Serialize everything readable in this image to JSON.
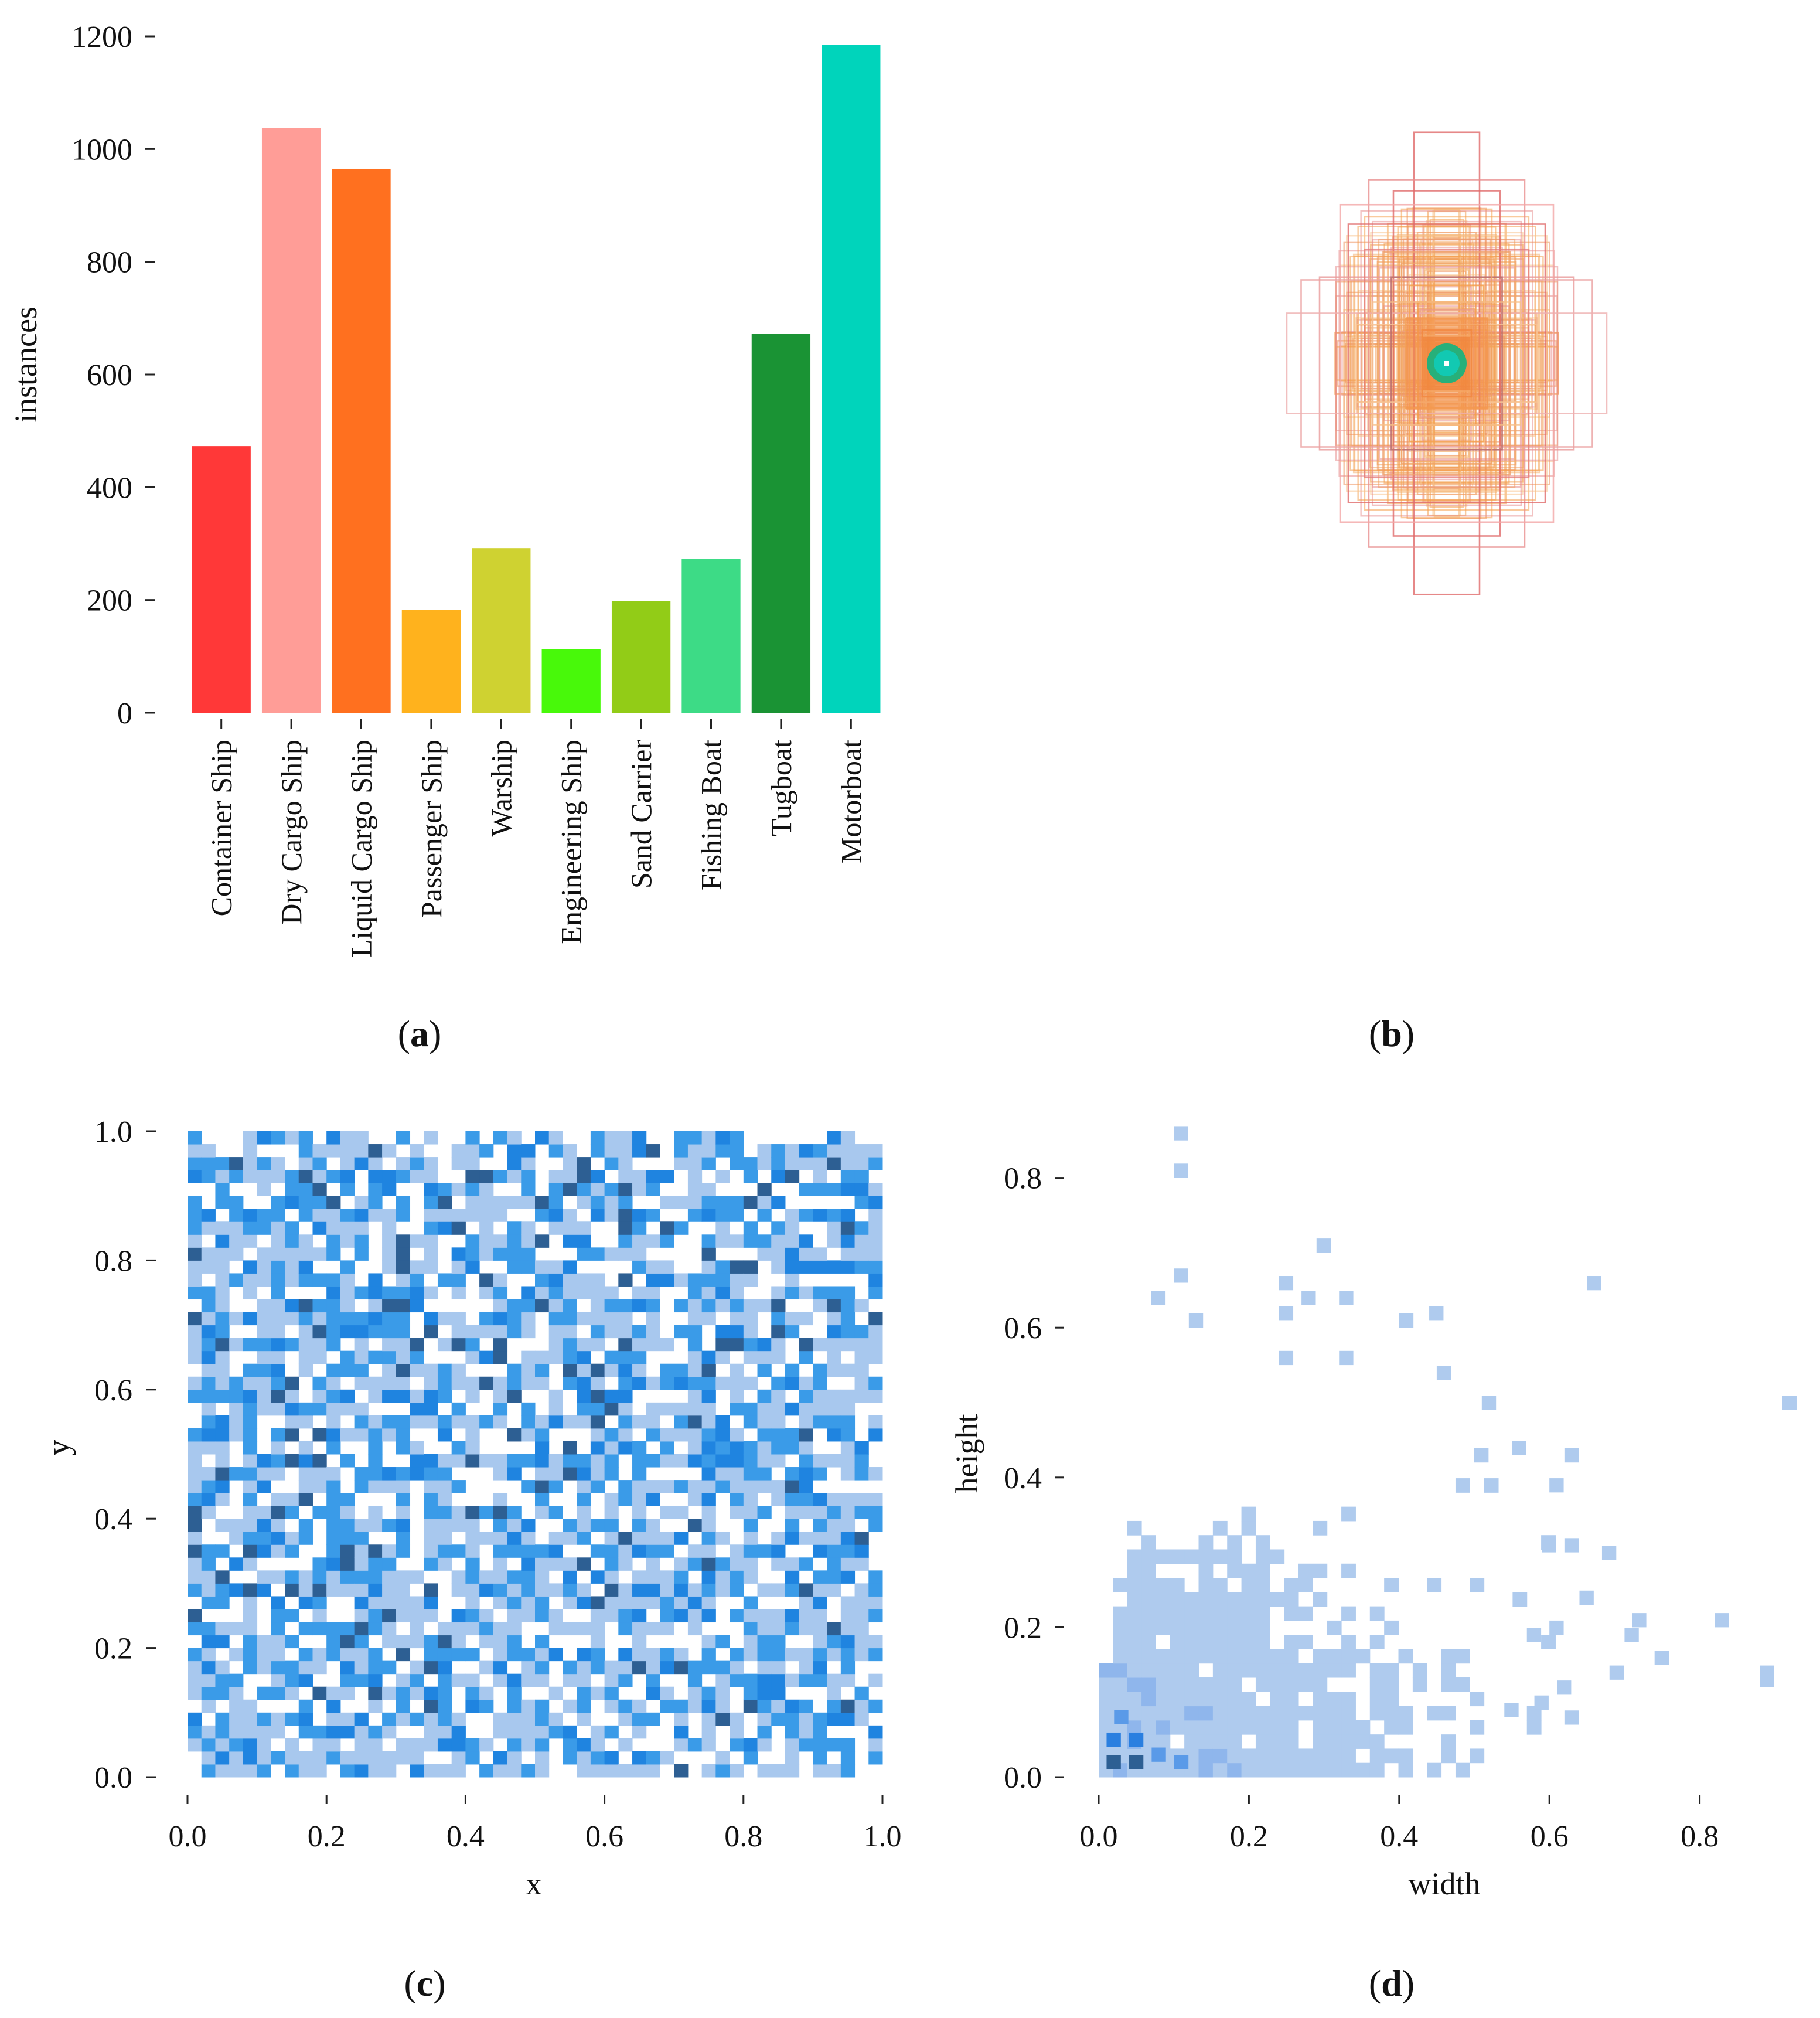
{
  "panels": {
    "a": {
      "label_open": "(",
      "label_letter": "a",
      "label_close": ")"
    },
    "b": {
      "label_open": "(",
      "label_letter": "b",
      "label_close": ")"
    },
    "c": {
      "label_open": "(",
      "label_letter": "c",
      "label_close": ")"
    },
    "d": {
      "label_open": "(",
      "label_letter": "d",
      "label_close": ")"
    }
  },
  "chart_data": [
    {
      "id": "a",
      "type": "bar",
      "title": "",
      "xlabel": "",
      "ylabel": "instances",
      "ylim": [
        0,
        1200
      ],
      "yticks": [
        0,
        200,
        400,
        600,
        800,
        1000,
        1200
      ],
      "ytick_labels": [
        "0",
        "200",
        "400",
        "600",
        "800",
        "1000",
        "1200"
      ],
      "categories": [
        "Container Ship",
        "Dry Cargo Ship",
        "Liquid Cargo Ship",
        "Passenger Ship",
        "Warship",
        "Engineering Ship",
        "Sand Carrier",
        "Fishing Boat",
        "Tugboat",
        "Motorboat"
      ],
      "values": [
        473,
        1037,
        965,
        182,
        292,
        113,
        198,
        273,
        672,
        1185
      ],
      "colors": [
        "#ff3838",
        "#ff9d97",
        "#ff701f",
        "#ffb21d",
        "#cfd231",
        "#48f90a",
        "#92cc17",
        "#3ddb86",
        "#1a9334",
        "#00d4bb"
      ],
      "grid": false
    },
    {
      "id": "b",
      "type": "box-overlay",
      "title": "",
      "description": "bounding boxes of all instances drawn centred at a common point",
      "box_sizes": [
        [
          0.16,
          0.83,
          "#e06a6a"
        ],
        [
          0.26,
          0.62,
          "#e06a6a"
        ],
        [
          0.38,
          0.66,
          "#e88f8f"
        ],
        [
          0.48,
          0.5,
          "#e06a6a"
        ],
        [
          0.62,
          0.31,
          "#e89a9a"
        ],
        [
          0.71,
          0.3,
          "#eaa0a0"
        ],
        [
          0.78,
          0.18,
          "#eeb0b0"
        ],
        [
          0.52,
          0.57,
          "#f2a6a6"
        ],
        [
          0.4,
          0.41,
          "#e57a7a"
        ],
        [
          0.31,
          0.4,
          "#ef9d6a"
        ],
        [
          0.27,
          0.31,
          "#b56a6a"
        ],
        [
          0.22,
          0.36,
          "#f0a060"
        ],
        [
          0.18,
          0.28,
          "#f5a14d"
        ],
        [
          0.14,
          0.22,
          "#f49e4a"
        ],
        [
          0.36,
          0.22,
          "#f6c08a"
        ],
        [
          0.44,
          0.14,
          "#f7c79a"
        ],
        [
          0.12,
          0.12,
          "#f07a34"
        ],
        [
          0.2,
          0.16,
          "#f2a055"
        ]
      ]
    },
    {
      "id": "c",
      "type": "heatmap",
      "title": "",
      "xlabel": "x",
      "ylabel": "y",
      "xlim": [
        0,
        1
      ],
      "ylim": [
        0,
        1
      ],
      "xticks": [
        0,
        0.2,
        0.4,
        0.6,
        0.8,
        1.0
      ],
      "xtick_labels": [
        "0.0",
        "0.2",
        "0.4",
        "0.6",
        "0.8",
        "1.0"
      ],
      "yticks": [
        0,
        0.2,
        0.4,
        0.6,
        0.8,
        1.0
      ],
      "ytick_labels": [
        "0.0",
        "0.2",
        "0.4",
        "0.6",
        "0.8",
        "1.0"
      ],
      "bins": [
        50,
        50
      ],
      "description": "2D histogram of box centres, roughly uniform over [0,1]x[0,1]",
      "palette": [
        "#a8c8ee",
        "#3a9be8",
        "#1f84e0",
        "#2d5f93"
      ]
    },
    {
      "id": "d",
      "type": "heatmap",
      "title": "",
      "xlabel": "width",
      "ylabel": "height",
      "xlim": [
        0,
        0.95
      ],
      "ylim": [
        0,
        0.88
      ],
      "xticks": [
        0,
        0.2,
        0.4,
        0.6,
        0.8
      ],
      "xtick_labels": [
        "0.0",
        "0.2",
        "0.4",
        "0.6",
        "0.8"
      ],
      "yticks": [
        0,
        0.2,
        0.4,
        0.6,
        0.8
      ],
      "ytick_labels": [
        "0.0",
        "0.2",
        "0.4",
        "0.6",
        "0.8"
      ],
      "bins": [
        50,
        50
      ],
      "description": "2D histogram of box widths vs heights, dense near the origin",
      "palette": [
        "#afcbee",
        "#8fb6ec",
        "#5a9ae8",
        "#2a7fe0",
        "#2d5f93"
      ],
      "hot_cells": [
        [
          0.02,
          0.02,
          4
        ],
        [
          0.05,
          0.02,
          4
        ],
        [
          0.02,
          0.05,
          3
        ],
        [
          0.05,
          0.05,
          3
        ],
        [
          0.08,
          0.03,
          2
        ],
        [
          0.11,
          0.02,
          2
        ],
        [
          0.03,
          0.08,
          2
        ]
      ],
      "outliers": [
        [
          0.1,
          0.85
        ],
        [
          0.1,
          0.8
        ],
        [
          0.1,
          0.66
        ],
        [
          0.07,
          0.63
        ],
        [
          0.29,
          0.7
        ],
        [
          0.24,
          0.65
        ],
        [
          0.24,
          0.61
        ],
        [
          0.27,
          0.63
        ],
        [
          0.32,
          0.63
        ],
        [
          0.4,
          0.6
        ],
        [
          0.44,
          0.61
        ],
        [
          0.65,
          0.65
        ],
        [
          0.91,
          0.49
        ],
        [
          0.12,
          0.6
        ],
        [
          0.24,
          0.55
        ],
        [
          0.32,
          0.55
        ],
        [
          0.45,
          0.53
        ],
        [
          0.51,
          0.49
        ],
        [
          0.5,
          0.42
        ],
        [
          0.55,
          0.43
        ],
        [
          0.62,
          0.42
        ],
        [
          0.6,
          0.38
        ],
        [
          0.67,
          0.29
        ],
        [
          0.82,
          0.2
        ],
        [
          0.88,
          0.12
        ],
        [
          0.88,
          0.13
        ],
        [
          0.74,
          0.15
        ],
        [
          0.71,
          0.2
        ],
        [
          0.7,
          0.18
        ],
        [
          0.68,
          0.13
        ],
        [
          0.61,
          0.11
        ],
        [
          0.62,
          0.07
        ],
        [
          0.58,
          0.09
        ],
        [
          0.54,
          0.08
        ],
        [
          0.64,
          0.23
        ],
        [
          0.6,
          0.19
        ],
        [
          0.57,
          0.18
        ],
        [
          0.62,
          0.3
        ],
        [
          0.59,
          0.3
        ]
      ]
    }
  ]
}
